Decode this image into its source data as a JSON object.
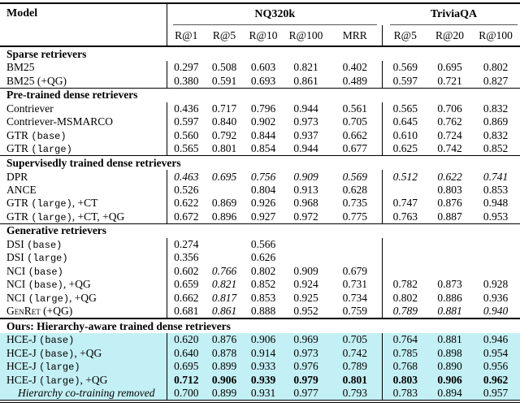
{
  "header": {
    "model_label": "Model",
    "groups": [
      {
        "label": "NQ320k",
        "span": 5
      },
      {
        "label": "TriviaQA",
        "span": 3
      }
    ],
    "subcols": [
      "R@1",
      "R@5",
      "R@10",
      "R@100",
      "MRR",
      "R@5",
      "R@20",
      "R@100"
    ]
  },
  "colors": {
    "highlight": "#c3f0f5",
    "rule": "#000000",
    "cmidrule": "#555555"
  },
  "sections": [
    {
      "title": "Sparse retrievers",
      "highlight": false,
      "rows": [
        {
          "name": [
            {
              "t": "BM25"
            }
          ],
          "vals": [
            "0.297",
            "0.508",
            "0.603",
            "0.821",
            "0.402",
            "0.569",
            "0.695",
            "0.802"
          ]
        },
        {
          "name": [
            {
              "t": "BM25 (+QG)"
            }
          ],
          "vals": [
            "0.380",
            "0.591",
            "0.693",
            "0.861",
            "0.489",
            "0.597",
            "0.721",
            "0.827"
          ]
        }
      ]
    },
    {
      "title": "Pre-trained dense retrievers",
      "highlight": false,
      "rows": [
        {
          "name": [
            {
              "t": "Contriever"
            }
          ],
          "vals": [
            "0.436",
            "0.717",
            "0.796",
            "0.944",
            "0.561",
            "0.565",
            "0.706",
            "0.832"
          ]
        },
        {
          "name": [
            {
              "t": "Contriever-MSMARCO"
            }
          ],
          "vals": [
            "0.597",
            "0.840",
            "0.902",
            "0.973",
            "0.705",
            "0.645",
            "0.762",
            "0.869"
          ]
        },
        {
          "name": [
            {
              "t": "GTR "
            },
            {
              "t": "(base)",
              "f": "mono"
            }
          ],
          "vals": [
            "0.560",
            "0.792",
            "0.844",
            "0.937",
            "0.662",
            "0.610",
            "0.724",
            "0.832"
          ]
        },
        {
          "name": [
            {
              "t": "GTR "
            },
            {
              "t": "(large)",
              "f": "mono"
            }
          ],
          "vals": [
            "0.565",
            "0.801",
            "0.854",
            "0.944",
            "0.677",
            "0.625",
            "0.742",
            "0.852"
          ]
        }
      ]
    },
    {
      "title": "Supervisedly trained dense retrievers",
      "highlight": false,
      "rows": [
        {
          "name": [
            {
              "t": "DPR"
            }
          ],
          "vals": [
            "0.463",
            "0.695",
            "0.756",
            "0.909",
            "0.569",
            "0.512",
            "0.622",
            "0.741"
          ],
          "italic": [
            0,
            1,
            2,
            3,
            4,
            5,
            6,
            7
          ]
        },
        {
          "name": [
            {
              "t": "ANCE"
            }
          ],
          "vals": [
            "0.526",
            "",
            "0.804",
            "0.913",
            "0.628",
            "",
            "0.803",
            "0.853"
          ]
        },
        {
          "name": [
            {
              "t": "GTR "
            },
            {
              "t": "(large)",
              "f": "mono"
            },
            {
              "t": ", +CT"
            }
          ],
          "vals": [
            "0.622",
            "0.869",
            "0.926",
            "0.968",
            "0.735",
            "0.747",
            "0.876",
            "0.948"
          ]
        },
        {
          "name": [
            {
              "t": "GTR "
            },
            {
              "t": "(large)",
              "f": "mono"
            },
            {
              "t": ", +CT, +QG"
            }
          ],
          "vals": [
            "0.672",
            "0.896",
            "0.927",
            "0.972",
            "0.775",
            "0.763",
            "0.887",
            "0.953"
          ]
        }
      ]
    },
    {
      "title": "Generative retrievers",
      "highlight": false,
      "rows": [
        {
          "name": [
            {
              "t": "DSI "
            },
            {
              "t": "(base)",
              "f": "mono"
            }
          ],
          "vals": [
            "0.274",
            "",
            "0.566",
            "",
            "",
            "",
            "",
            ""
          ]
        },
        {
          "name": [
            {
              "t": "DSI "
            },
            {
              "t": "(large)",
              "f": "mono"
            }
          ],
          "vals": [
            "0.356",
            "",
            "0.626",
            "",
            "",
            "",
            "",
            ""
          ]
        },
        {
          "name": [
            {
              "t": "NCI "
            },
            {
              "t": "(base)",
              "f": "mono"
            }
          ],
          "vals": [
            "0.602",
            "0.766",
            "0.802",
            "0.909",
            "0.679",
            "",
            "",
            ""
          ],
          "italic": [
            1
          ]
        },
        {
          "name": [
            {
              "t": "NCI "
            },
            {
              "t": "(base)",
              "f": "mono"
            },
            {
              "t": ", +QG"
            }
          ],
          "vals": [
            "0.659",
            "0.821",
            "0.852",
            "0.924",
            "0.731",
            "0.782",
            "0.873",
            "0.928"
          ],
          "italic": [
            1
          ]
        },
        {
          "name": [
            {
              "t": "NCI "
            },
            {
              "t": "(large)",
              "f": "mono"
            },
            {
              "t": ", +QG"
            }
          ],
          "vals": [
            "0.662",
            "0.817",
            "0.853",
            "0.925",
            "0.734",
            "0.802",
            "0.886",
            "0.936"
          ],
          "italic": [
            1
          ]
        },
        {
          "name": [
            {
              "t": "GenRet",
              "f": "sc"
            },
            {
              "t": " (+QG)"
            }
          ],
          "vals": [
            "0.681",
            "0.861",
            "0.888",
            "0.952",
            "0.759",
            "0.789",
            "0.881",
            "0.940"
          ],
          "italic": [
            1,
            5,
            6,
            7
          ]
        }
      ]
    },
    {
      "title": "Ours: Hierarchy-aware trained dense retrievers",
      "highlight": true,
      "rows": [
        {
          "name": [
            {
              "t": "HCE-J "
            },
            {
              "t": "(base)",
              "f": "mono"
            }
          ],
          "vals": [
            "0.620",
            "0.876",
            "0.906",
            "0.969",
            "0.705",
            "0.764",
            "0.881",
            "0.946"
          ]
        },
        {
          "name": [
            {
              "t": "HCE-J "
            },
            {
              "t": "(base)",
              "f": "mono"
            },
            {
              "t": ", +QG"
            }
          ],
          "vals": [
            "0.640",
            "0.878",
            "0.914",
            "0.973",
            "0.742",
            "0.785",
            "0.898",
            "0.954"
          ]
        },
        {
          "name": [
            {
              "t": "HCE-J "
            },
            {
              "t": "(large)",
              "f": "mono"
            }
          ],
          "vals": [
            "0.695",
            "0.899",
            "0.933",
            "0.976",
            "0.789",
            "0.768",
            "0.890",
            "0.956"
          ]
        },
        {
          "name": [
            {
              "t": "HCE-J "
            },
            {
              "t": "(large)",
              "f": "mono"
            },
            {
              "t": ", +QG"
            }
          ],
          "vals": [
            "0.712",
            "0.906",
            "0.939",
            "0.979",
            "0.801",
            "0.803",
            "0.906",
            "0.962"
          ],
          "bold": true
        },
        {
          "name": [
            {
              "t": "Hierarchy co-training removed",
              "f": "i"
            }
          ],
          "indent": true,
          "vals": [
            "0.700",
            "0.899",
            "0.931",
            "0.977",
            "0.793",
            "0.783",
            "0.894",
            "0.957"
          ]
        }
      ]
    }
  ]
}
